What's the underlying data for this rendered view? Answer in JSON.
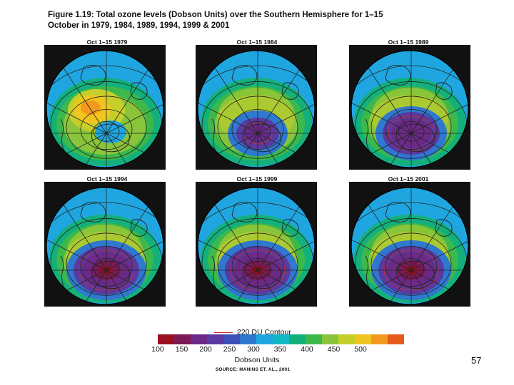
{
  "figure": {
    "caption": "Figure 1.19: Total ozone levels (Dobson Units) over the Southern Hemisphere for 1–15 October in 1979, 1984, 1989, 1994, 1999 & 2001"
  },
  "maps": [
    {
      "title": "Oct 1–15 1979",
      "year": 1979,
      "hole_level": "none",
      "max_region": "high"
    },
    {
      "title": "Oct 1–15 1984",
      "year": 1984,
      "hole_level": "moderate"
    },
    {
      "title": "Oct 1–15 1989",
      "year": 1989,
      "hole_level": "large"
    },
    {
      "title": "Oct 1–15 1994",
      "year": 1994,
      "hole_level": "deep"
    },
    {
      "title": "Oct 1–15 1999",
      "year": 1999,
      "hole_level": "deep"
    },
    {
      "title": "Oct 1–15 2001",
      "year": 2001,
      "hole_level": "deep"
    }
  ],
  "legend": {
    "contour_label": "220 DU Contour",
    "contour_color": "#c0282a",
    "units_label": "Dobson Units",
    "ticks": [
      "100",
      "150",
      "200",
      "250",
      "300",
      "350",
      "400",
      "450",
      "500"
    ],
    "colors": [
      "#9b1020",
      "#7b1a55",
      "#6b2a86",
      "#5a3aa0",
      "#3c4fb8",
      "#2f78cf",
      "#1fa6e0",
      "#12b7c4",
      "#14b07c",
      "#3db84a",
      "#8ac43a",
      "#c6cf2a",
      "#f0c61e",
      "#f29a1e",
      "#e85a1c"
    ]
  },
  "source": "SOURCE: MANINS ET. AL., 2001",
  "page_number": "57"
}
